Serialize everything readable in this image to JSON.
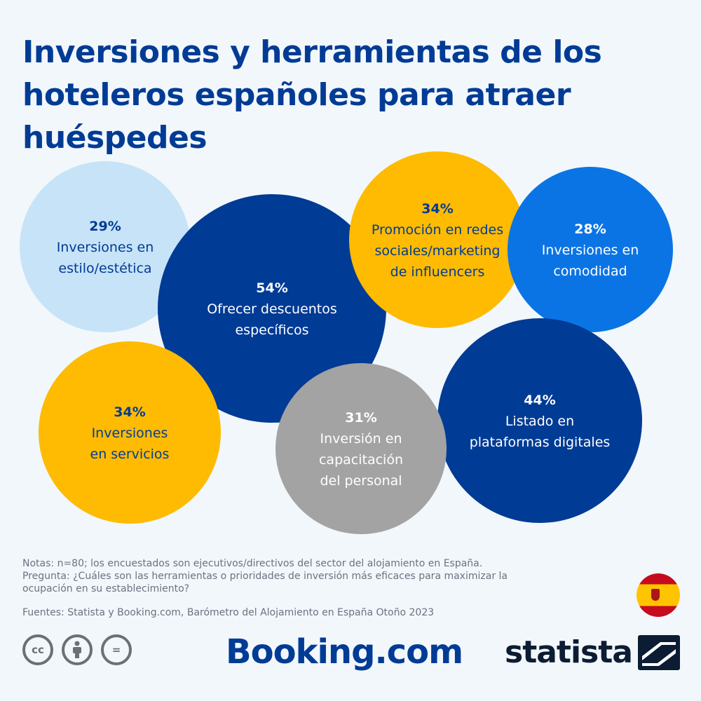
{
  "title": "Inversiones y herramientas de los hoteleros españoles para atraer huéspedes",
  "chart_data": {
    "type": "bubble",
    "unit": "%",
    "items": [
      {
        "value": 29,
        "pct": "29%",
        "lines": [
          "Inversiones en",
          "estilo/estética"
        ],
        "color": "#c7e3f8",
        "text_color": "#003b95"
      },
      {
        "value": 54,
        "pct": "54%",
        "lines": [
          "Ofrecer descuentos",
          "específicos"
        ],
        "color": "#003b95",
        "text_color": "#ffffff"
      },
      {
        "value": 34,
        "pct": "34%",
        "lines": [
          "Promoción en redes",
          "sociales/marketing",
          "de influencers"
        ],
        "color": "#febb02",
        "text_color": "#003b95"
      },
      {
        "value": 28,
        "pct": "28%",
        "lines": [
          "Inversiones en",
          "comodidad"
        ],
        "color": "#0b74e5",
        "text_color": "#ffffff"
      },
      {
        "value": 44,
        "pct": "44%",
        "lines": [
          "Listado en",
          "plataformas digitales"
        ],
        "color": "#003b95",
        "text_color": "#ffffff"
      },
      {
        "value": 34,
        "pct": "34%",
        "lines": [
          "Inversiones",
          "en servicios"
        ],
        "color": "#febb02",
        "text_color": "#003b95"
      },
      {
        "value": 31,
        "pct": "31%",
        "lines": [
          "Inversión en",
          "capacitación",
          "del personal"
        ],
        "color": "#a3a3a3",
        "text_color": "#ffffff"
      }
    ]
  },
  "notes": {
    "line1": "Notas: n=80; los encuestados son ejecutivos/directivos del sector del alojamiento en España.",
    "line2": "Pregunta: ¿Cuáles son las herramientas o prioridades de inversión más eficaces para maximizar la ocupación en su establecimiento?"
  },
  "sources": "Fuentes: Statista y Booking.com, Barómetro del Alojamiento en España Otoño 2023",
  "logos": {
    "booking": "Booking.com",
    "statista": "statista",
    "cc_icons": [
      "cc-icon",
      "attribution-icon",
      "no-derivatives-icon"
    ],
    "cc_labels": [
      "cc",
      "",
      "="
    ]
  }
}
